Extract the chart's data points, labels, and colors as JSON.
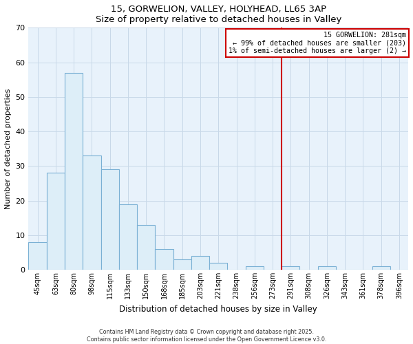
{
  "title": "15, GORWELION, VALLEY, HOLYHEAD, LL65 3AP",
  "subtitle": "Size of property relative to detached houses in Valley",
  "xlabel": "Distribution of detached houses by size in Valley",
  "ylabel": "Number of detached properties",
  "bar_color": "#ddeef8",
  "bar_edge_color": "#7ab0d4",
  "background_color": "#ffffff",
  "axes_bg_color": "#e8f2fb",
  "grid_color": "#c8d8e8",
  "categories": [
    "45sqm",
    "63sqm",
    "80sqm",
    "98sqm",
    "115sqm",
    "133sqm",
    "150sqm",
    "168sqm",
    "185sqm",
    "203sqm",
    "221sqm",
    "238sqm",
    "256sqm",
    "273sqm",
    "291sqm",
    "308sqm",
    "326sqm",
    "343sqm",
    "361sqm",
    "378sqm",
    "396sqm"
  ],
  "values": [
    8,
    28,
    57,
    33,
    29,
    19,
    13,
    6,
    3,
    4,
    2,
    0,
    1,
    0,
    1,
    0,
    1,
    0,
    0,
    1,
    0
  ],
  "ylim": [
    0,
    70
  ],
  "yticks": [
    0,
    10,
    20,
    30,
    40,
    50,
    60,
    70
  ],
  "vline_x_index": 13.5,
  "vline_color": "#cc0000",
  "annotation_title": "15 GORWELION: 281sqm",
  "annotation_line1": "← 99% of detached houses are smaller (203)",
  "annotation_line2": "1% of semi-detached houses are larger (2) →",
  "annotation_box_color": "#ffffff",
  "annotation_box_edge": "#cc0000",
  "footnote1": "Contains HM Land Registry data © Crown copyright and database right 2025.",
  "footnote2": "Contains public sector information licensed under the Open Government Licence v3.0."
}
